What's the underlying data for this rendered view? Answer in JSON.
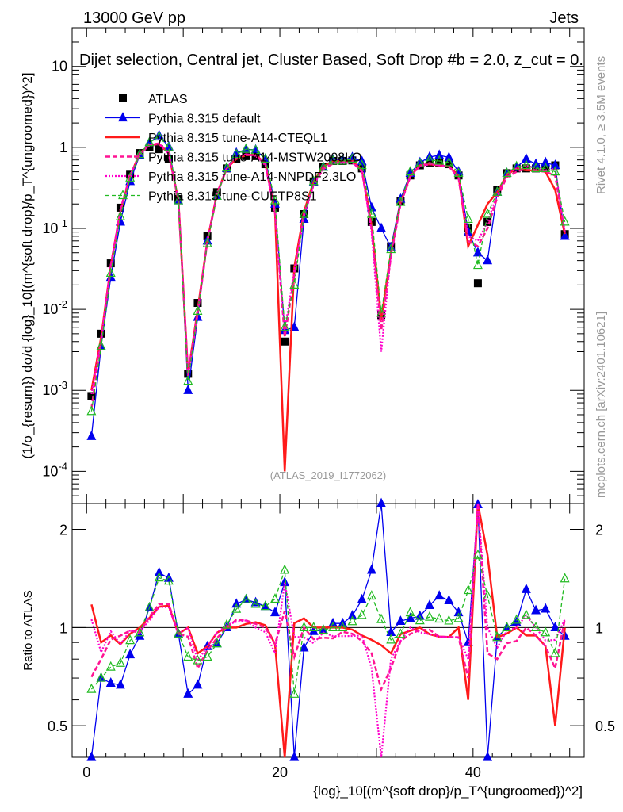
{
  "header": {
    "energy_label": "13000 GeV pp",
    "category_label": "Jets"
  },
  "side_labels": {
    "rivet": "Rivet 4.1.0, ≥ 3.5M events",
    "mcplots": "mcplots.cern.ch [arXiv:2401.10621]"
  },
  "colors": {
    "atlas": "#000000",
    "default": "#0000ee",
    "cteql1": "#ff1a1a",
    "mstw": "#ff1493",
    "nnpdf": "#ff00cc",
    "cuetp8s1": "#22bb22"
  },
  "chart_data": {
    "type": "line",
    "title": "Dijet selection, Central jet, Cluster Based, Soft Drop #b = 2.0, z_cut = 0.",
    "analysis_tag": "(ATLAS_2019_I1772062)",
    "xlabel": "{log}_10[(m^{soft drop}/p_T^{ungroomed})^2]",
    "ylabel": "(1/σ_{resum}) dσ/d {log}_10[(m^{soft drop}/p_T^{ungroomed})^2]",
    "ratio_ylabel": "Ratio to ATLAS",
    "xlim": [
      -1.5,
      51.5
    ],
    "ylim": [
      4e-05,
      30
    ],
    "yscale": "log",
    "ratio_ylim": [
      0.4,
      2.4
    ],
    "x_ticks": [
      "0",
      "20",
      "40"
    ],
    "y_ticks": [
      "10^{-4}",
      "10^{-3}",
      "10^{-2}",
      "10^{-1}",
      "1",
      "10"
    ],
    "ratio_ticks": [
      "0.5",
      "1",
      "2"
    ],
    "x": [
      0.5,
      1.5,
      2.5,
      3.5,
      4.5,
      5.5,
      6.5,
      7.5,
      8.5,
      9.5,
      10.5,
      11.5,
      12.5,
      13.5,
      14.5,
      15.5,
      16.5,
      17.5,
      18.5,
      19.5,
      20.5,
      21.5,
      22.5,
      23.5,
      24.5,
      25.5,
      26.5,
      27.5,
      28.5,
      29.5,
      30.5,
      31.5,
      32.5,
      33.5,
      34.5,
      35.5,
      36.5,
      37.5,
      38.5,
      39.5,
      40.5,
      41.5,
      42.5,
      43.5,
      44.5,
      45.5,
      46.5,
      47.5,
      48.5,
      49.5
    ],
    "series": [
      {
        "name": "ATLAS",
        "key": "atlas",
        "marker": "square",
        "values": [
          0.00085,
          0.005,
          0.037,
          0.18,
          0.46,
          0.85,
          1.0,
          0.95,
          0.72,
          0.23,
          0.0016,
          0.012,
          0.08,
          0.28,
          0.55,
          0.72,
          0.78,
          0.78,
          0.62,
          0.18,
          0.004,
          0.032,
          0.15,
          0.38,
          0.58,
          0.68,
          0.68,
          0.69,
          0.55,
          0.12,
          0.0085,
          0.06,
          0.22,
          0.45,
          0.6,
          0.65,
          0.64,
          0.62,
          0.45,
          0.1,
          0.021,
          0.12,
          0.3,
          0.48,
          0.55,
          0.55,
          0.55,
          0.57,
          0.6,
          0.085
        ]
      },
      {
        "name": "Pythia 8.315 default",
        "key": "default",
        "marker": "triangle",
        "values": [
          0.00027,
          0.0035,
          0.025,
          0.12,
          0.38,
          0.8,
          1.15,
          1.4,
          1.02,
          0.22,
          0.001,
          0.008,
          0.07,
          0.25,
          0.55,
          0.85,
          0.95,
          0.93,
          0.72,
          0.2,
          0.0055,
          0.006,
          0.13,
          0.37,
          0.57,
          0.7,
          0.7,
          0.75,
          0.67,
          0.18,
          0.1,
          0.058,
          0.23,
          0.48,
          0.65,
          0.76,
          0.8,
          0.75,
          0.5,
          0.09,
          0.05,
          0.04,
          0.28,
          0.48,
          0.57,
          0.72,
          0.62,
          0.65,
          0.6,
          0.08
        ]
      },
      {
        "name": "Pythia 8.315 tune-A14-CTEQL1",
        "key": "cteql1",
        "marker": "none",
        "values": [
          0.001,
          0.0045,
          0.035,
          0.16,
          0.44,
          0.85,
          1.07,
          1.1,
          0.84,
          0.22,
          0.0016,
          0.01,
          0.07,
          0.27,
          0.55,
          0.72,
          0.8,
          0.81,
          0.63,
          0.16,
          0.0001,
          0.033,
          0.16,
          0.38,
          0.58,
          0.68,
          0.68,
          0.68,
          0.52,
          0.11,
          0.0075,
          0.05,
          0.21,
          0.44,
          0.6,
          0.62,
          0.6,
          0.58,
          0.45,
          0.06,
          0.11,
          0.2,
          0.28,
          0.46,
          0.55,
          0.52,
          0.52,
          0.5,
          0.3,
          0.085
        ]
      },
      {
        "name": "Pythia 8.315 tune-A14-MSTW2008LO",
        "key": "mstw",
        "marker": "none",
        "values": [
          0.0006,
          0.004,
          0.034,
          0.17,
          0.45,
          0.82,
          1.08,
          1.12,
          0.85,
          0.22,
          0.0015,
          0.009,
          0.068,
          0.26,
          0.55,
          0.76,
          0.82,
          0.8,
          0.62,
          0.16,
          0.0045,
          0.026,
          0.15,
          0.35,
          0.54,
          0.63,
          0.66,
          0.66,
          0.5,
          0.1,
          0.0055,
          0.045,
          0.2,
          0.43,
          0.59,
          0.64,
          0.6,
          0.58,
          0.42,
          0.07,
          0.06,
          0.1,
          0.24,
          0.43,
          0.5,
          0.55,
          0.52,
          0.5,
          0.45,
          0.09
        ]
      },
      {
        "name": "Pythia 8.315 tune-A14-NNPDF2.3LO",
        "key": "nnpdf",
        "marker": "none",
        "values": [
          0.0009,
          0.0042,
          0.036,
          0.16,
          0.45,
          0.83,
          1.05,
          1.1,
          0.83,
          0.22,
          0.0016,
          0.0095,
          0.07,
          0.27,
          0.56,
          0.75,
          0.82,
          0.78,
          0.6,
          0.15,
          0.0055,
          0.03,
          0.14,
          0.34,
          0.56,
          0.64,
          0.64,
          0.65,
          0.52,
          0.09,
          0.003,
          0.048,
          0.2,
          0.45,
          0.58,
          0.62,
          0.6,
          0.58,
          0.42,
          0.08,
          0.07,
          0.12,
          0.26,
          0.47,
          0.55,
          0.6,
          0.55,
          0.52,
          0.55,
          0.09
        ]
      },
      {
        "name": "Pythia 8.315 tune-CUETP8S1",
        "key": "cuetp8s1",
        "marker": "triangle-open",
        "values": [
          0.00055,
          0.0035,
          0.028,
          0.14,
          0.42,
          0.82,
          1.15,
          1.35,
          1.0,
          0.22,
          0.0013,
          0.0095,
          0.065,
          0.25,
          0.56,
          0.82,
          0.95,
          0.92,
          0.72,
          0.22,
          0.006,
          0.02,
          0.15,
          0.38,
          0.57,
          0.68,
          0.68,
          0.72,
          0.6,
          0.15,
          0.009,
          0.055,
          0.21,
          0.5,
          0.63,
          0.7,
          0.68,
          0.65,
          0.48,
          0.13,
          0.035,
          0.15,
          0.28,
          0.48,
          0.58,
          0.6,
          0.55,
          0.55,
          0.5,
          0.12
        ]
      }
    ]
  }
}
